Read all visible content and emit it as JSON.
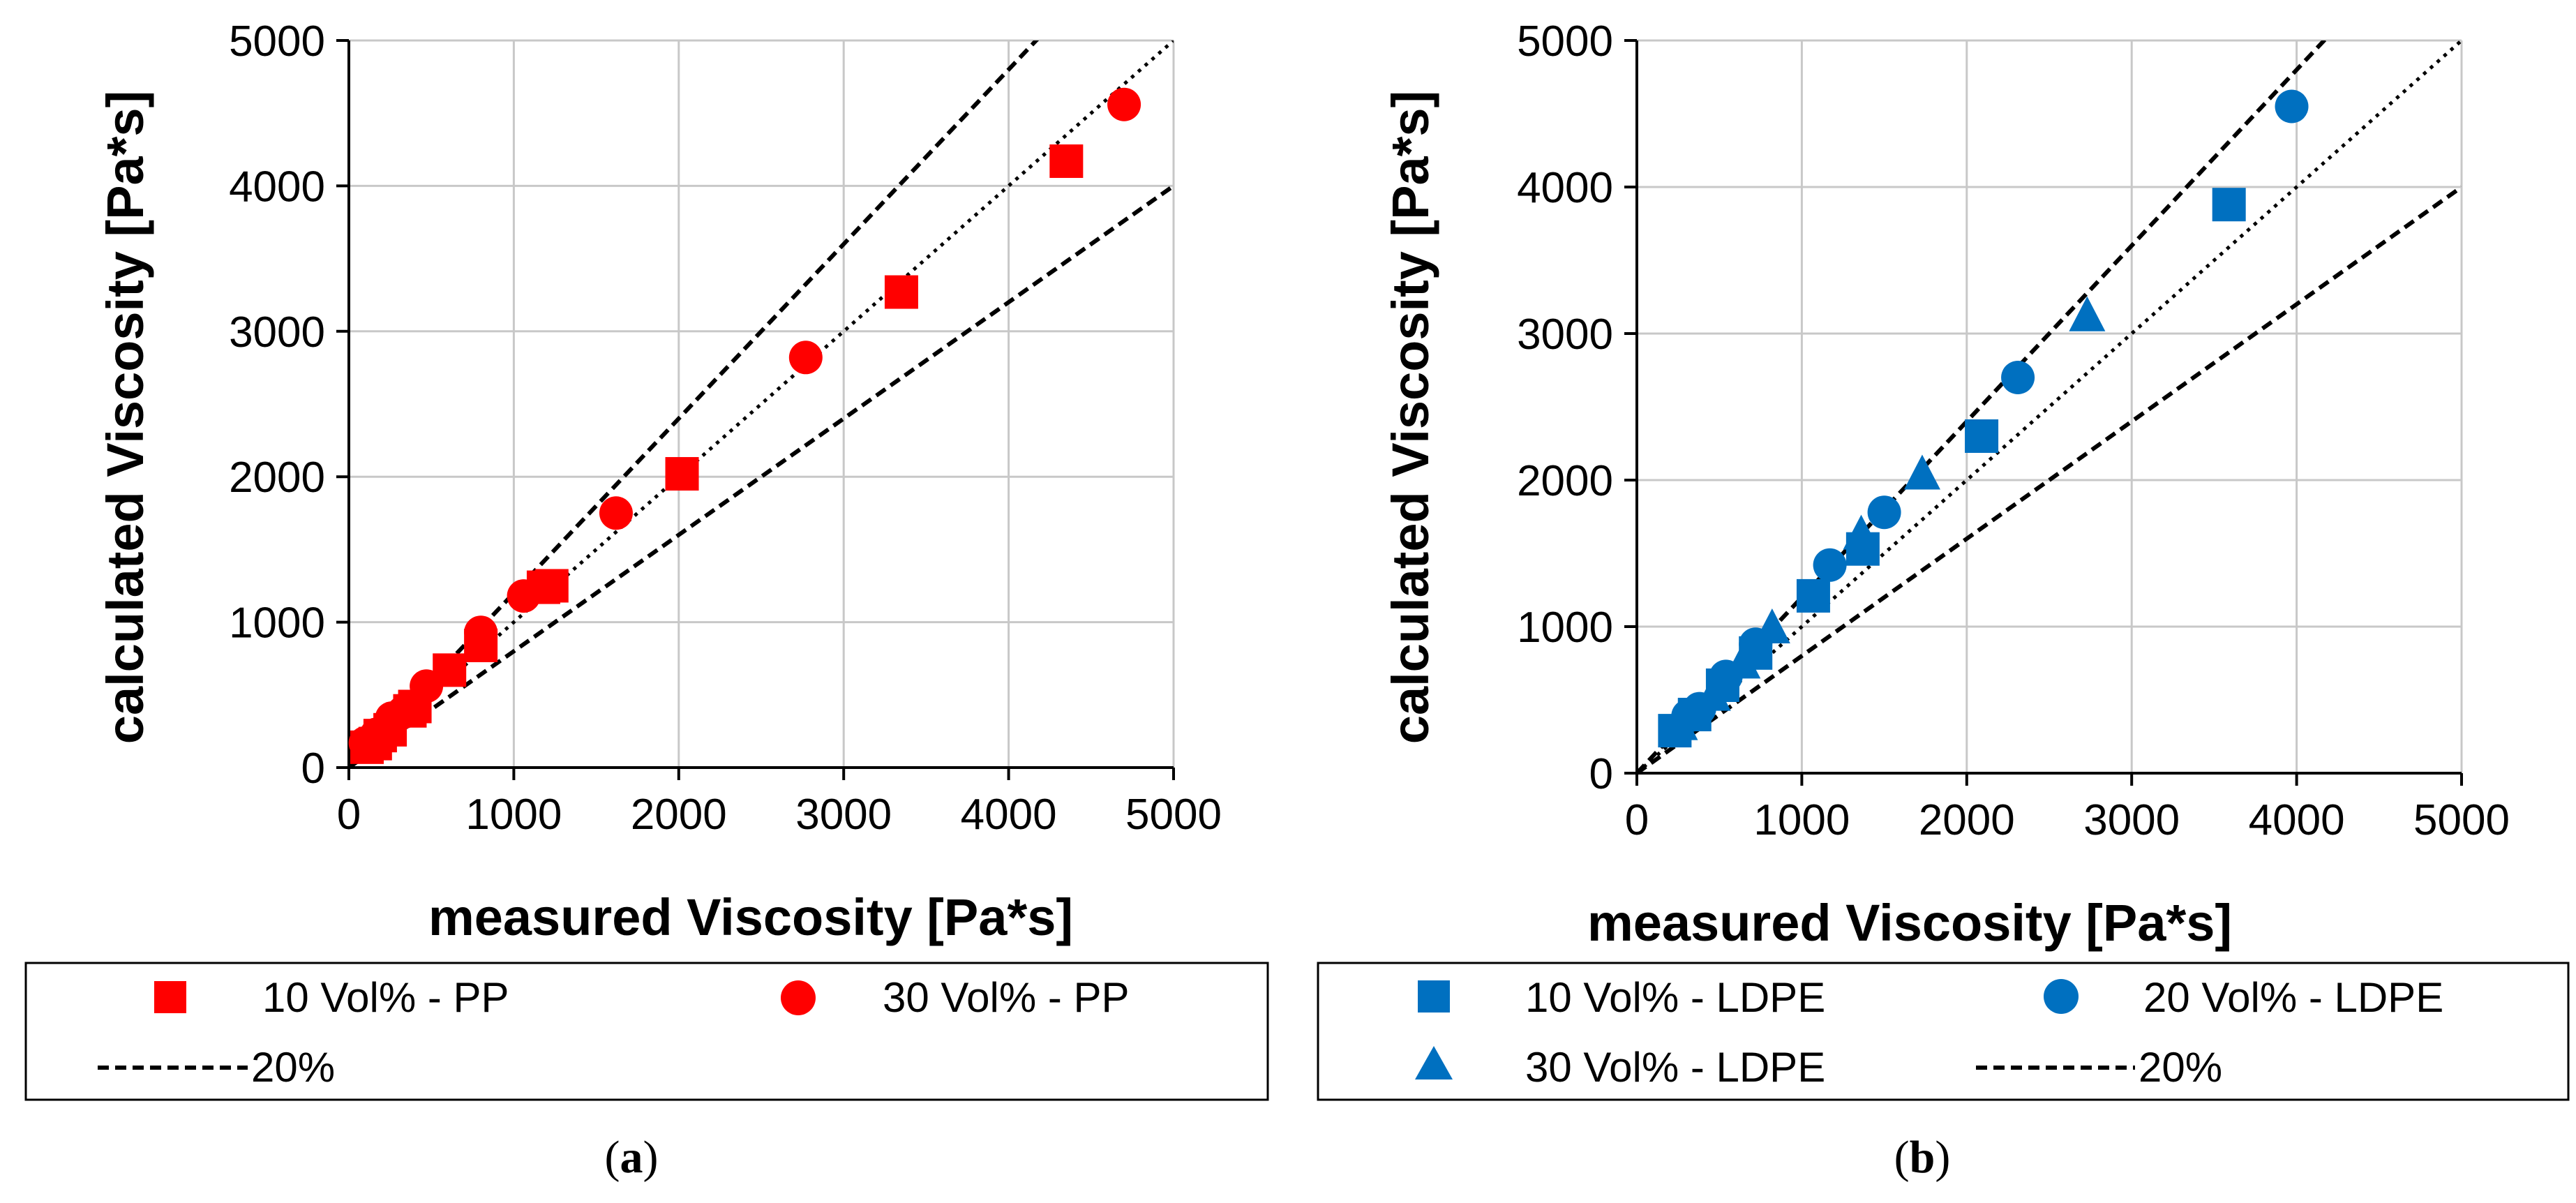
{
  "chart_data": [
    {
      "type": "scatter",
      "panel_label": "a",
      "xlabel": "measured Viscosity [Pa*s]",
      "ylabel": "calculated Viscosity [Pa*s]",
      "xlim": [
        0,
        5000
      ],
      "ylim": [
        0,
        5000
      ],
      "xticks": [
        0,
        1000,
        2000,
        3000,
        4000,
        5000
      ],
      "yticks": [
        0,
        1000,
        2000,
        3000,
        4000,
        5000
      ],
      "grid": true,
      "legend_position": "below",
      "series": [
        {
          "name": "10 Vol% - PP",
          "marker": "square",
          "color": "#ff0000",
          "points": [
            [
              110,
              140
            ],
            [
              160,
              165
            ],
            [
              190,
              220
            ],
            [
              250,
              260
            ],
            [
              370,
              390
            ],
            [
              400,
              420
            ],
            [
              610,
              670
            ],
            [
              800,
              840
            ],
            [
              1180,
              1240
            ],
            [
              1230,
              1250
            ],
            [
              2020,
              2020
            ],
            [
              3350,
              3270
            ],
            [
              4350,
              4170
            ]
          ]
        },
        {
          "name": "30 Vol% - PP",
          "marker": "circle",
          "color": "#ff0000",
          "points": [
            [
              100,
              170
            ],
            [
              170,
              230
            ],
            [
              260,
              340
            ],
            [
              330,
              380
            ],
            [
              470,
              560
            ],
            [
              800,
              930
            ],
            [
              1060,
              1180
            ],
            [
              1620,
              1750
            ],
            [
              2770,
              2820
            ],
            [
              4700,
              4560
            ]
          ]
        }
      ],
      "reference_lines": [
        {
          "name": "20%",
          "style": "dashed",
          "slope": 1.2
        },
        {
          "name": "20%",
          "style": "dashed",
          "slope": 0.8
        },
        {
          "name": "",
          "style": "dotted",
          "slope": 1.0
        }
      ]
    },
    {
      "type": "scatter",
      "panel_label": "b",
      "xlabel": "measured Viscosity [Pa*s]",
      "ylabel": "calculated Viscosity [Pa*s]",
      "xlim": [
        0,
        5000
      ],
      "ylim": [
        0,
        5000
      ],
      "xticks": [
        0,
        1000,
        2000,
        3000,
        4000,
        5000
      ],
      "yticks": [
        0,
        1000,
        2000,
        3000,
        4000,
        5000
      ],
      "grid": true,
      "legend_position": "below",
      "series": [
        {
          "name": "10 Vol% - LDPE",
          "marker": "square",
          "color": "#0070c0",
          "points": [
            [
              230,
              290
            ],
            [
              350,
              400
            ],
            [
              520,
              600
            ],
            [
              720,
              820
            ],
            [
              1070,
              1210
            ],
            [
              1370,
              1530
            ],
            [
              2090,
              2300
            ],
            [
              3590,
              3880
            ]
          ]
        },
        {
          "name": "20 Vol% - LDPE",
          "marker": "circle",
          "color": "#0070c0",
          "points": [
            [
              310,
              390
            ],
            [
              380,
              440
            ],
            [
              540,
              660
            ],
            [
              720,
              880
            ],
            [
              1170,
              1420
            ],
            [
              1500,
              1780
            ],
            [
              2310,
              2700
            ],
            [
              3970,
              4550
            ]
          ]
        },
        {
          "name": "30 Vol% - LDPE",
          "marker": "triangle",
          "color": "#0070c0",
          "points": [
            [
              260,
              340
            ],
            [
              460,
              540
            ],
            [
              640,
              760
            ],
            [
              820,
              1000
            ],
            [
              1360,
              1640
            ],
            [
              1730,
              2050
            ],
            [
              2730,
              3130
            ]
          ]
        }
      ],
      "reference_lines": [
        {
          "name": "20%",
          "style": "dashed",
          "slope": 1.2
        },
        {
          "name": "20%",
          "style": "dashed",
          "slope": 0.8
        },
        {
          "name": "",
          "style": "dotted",
          "slope": 1.0
        }
      ]
    }
  ],
  "legends": {
    "a": {
      "entries": [
        {
          "marker": "square",
          "label": "10 Vol% - PP"
        },
        {
          "marker": "circle",
          "label": "30 Vol% - PP"
        },
        {
          "marker": "dashed",
          "label": "20%"
        }
      ]
    },
    "b": {
      "entries": [
        {
          "marker": "square",
          "label": "10 Vol% - LDPE"
        },
        {
          "marker": "circle",
          "label": "20 Vol% - LDPE"
        },
        {
          "marker": "triangle",
          "label": "30 Vol% - LDPE"
        },
        {
          "marker": "dashed",
          "label": "20%"
        }
      ]
    }
  },
  "captions": {
    "a": {
      "open": "(",
      "letter": "a",
      "close": ")"
    },
    "b": {
      "open": "(",
      "letter": "b",
      "close": ")"
    }
  }
}
